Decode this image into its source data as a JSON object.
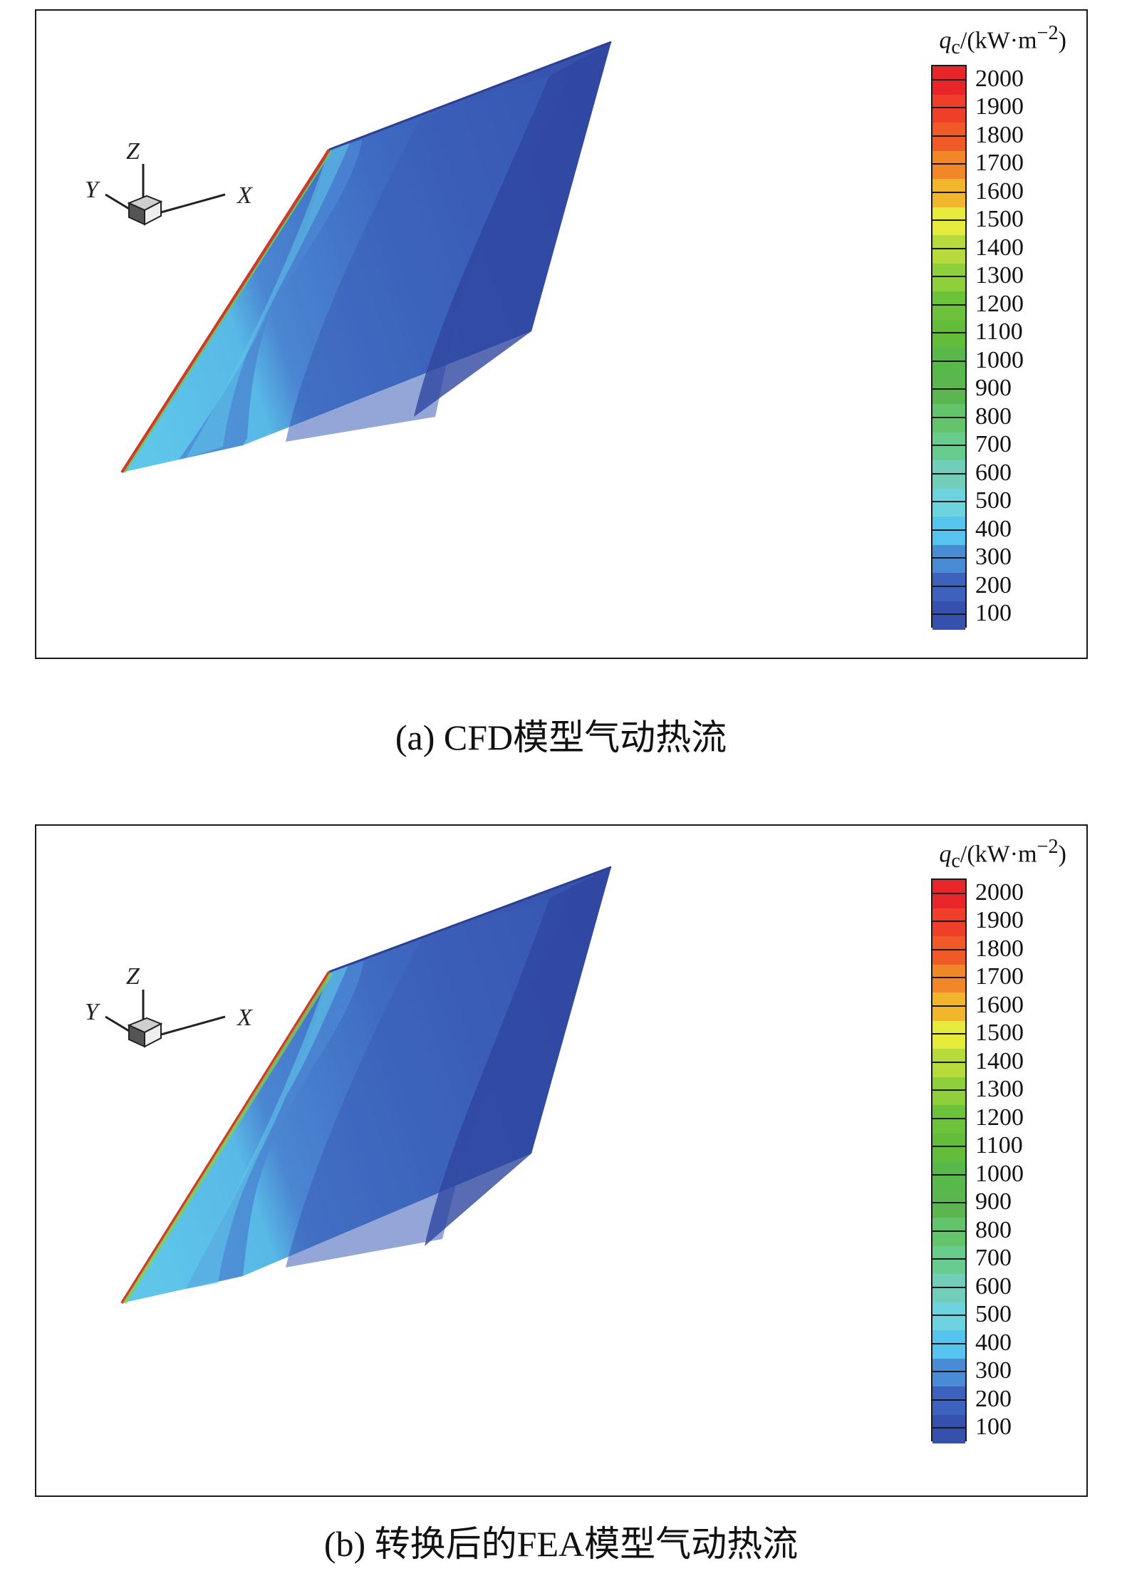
{
  "panels": [
    {
      "id": "a",
      "caption": "(a) CFD模型气动热流",
      "legend": {
        "unit_symbol": "q",
        "unit_sub": "c",
        "unit_rest": "/(kW·m",
        "unit_exp": "−2",
        "unit_close": ")"
      },
      "axes": {
        "x": "X",
        "y": "Y",
        "z": "Z"
      }
    },
    {
      "id": "b",
      "caption": "(b) 转换后的FEA模型气动热流",
      "legend": {
        "unit_symbol": "q",
        "unit_sub": "c",
        "unit_rest": "/(kW·m",
        "unit_exp": "−2",
        "unit_close": ")"
      },
      "axes": {
        "x": "X",
        "y": "Y",
        "z": "Z"
      }
    }
  ],
  "legend_levels": [
    "2000",
    "1900",
    "1800",
    "1700",
    "1600",
    "1500",
    "1400",
    "1300",
    "1200",
    "1100",
    "1000",
    "900",
    "800",
    "700",
    "600",
    "500",
    "400",
    "300",
    "200",
    "100"
  ],
  "legend_colors": [
    "#e8262a",
    "#ef3f2a",
    "#f05a28",
    "#f28729",
    "#f2b62d",
    "#e6ea3a",
    "#b7da3c",
    "#8fcf3b",
    "#6cc23a",
    "#63bd3b",
    "#59b84a",
    "#5cb64f",
    "#63c46c",
    "#68cc8e",
    "#72ceb8",
    "#6dd3df",
    "#56c4ee",
    "#4a8bd6",
    "#3c62bd",
    "#3550ad"
  ],
  "colors": {
    "deep_blue": "#3046a0",
    "mid_blue": "#3a5cb6",
    "light_blue": "#4b86d2",
    "cyan": "#5fc6ea",
    "leading_edge": "#c8322a"
  }
}
